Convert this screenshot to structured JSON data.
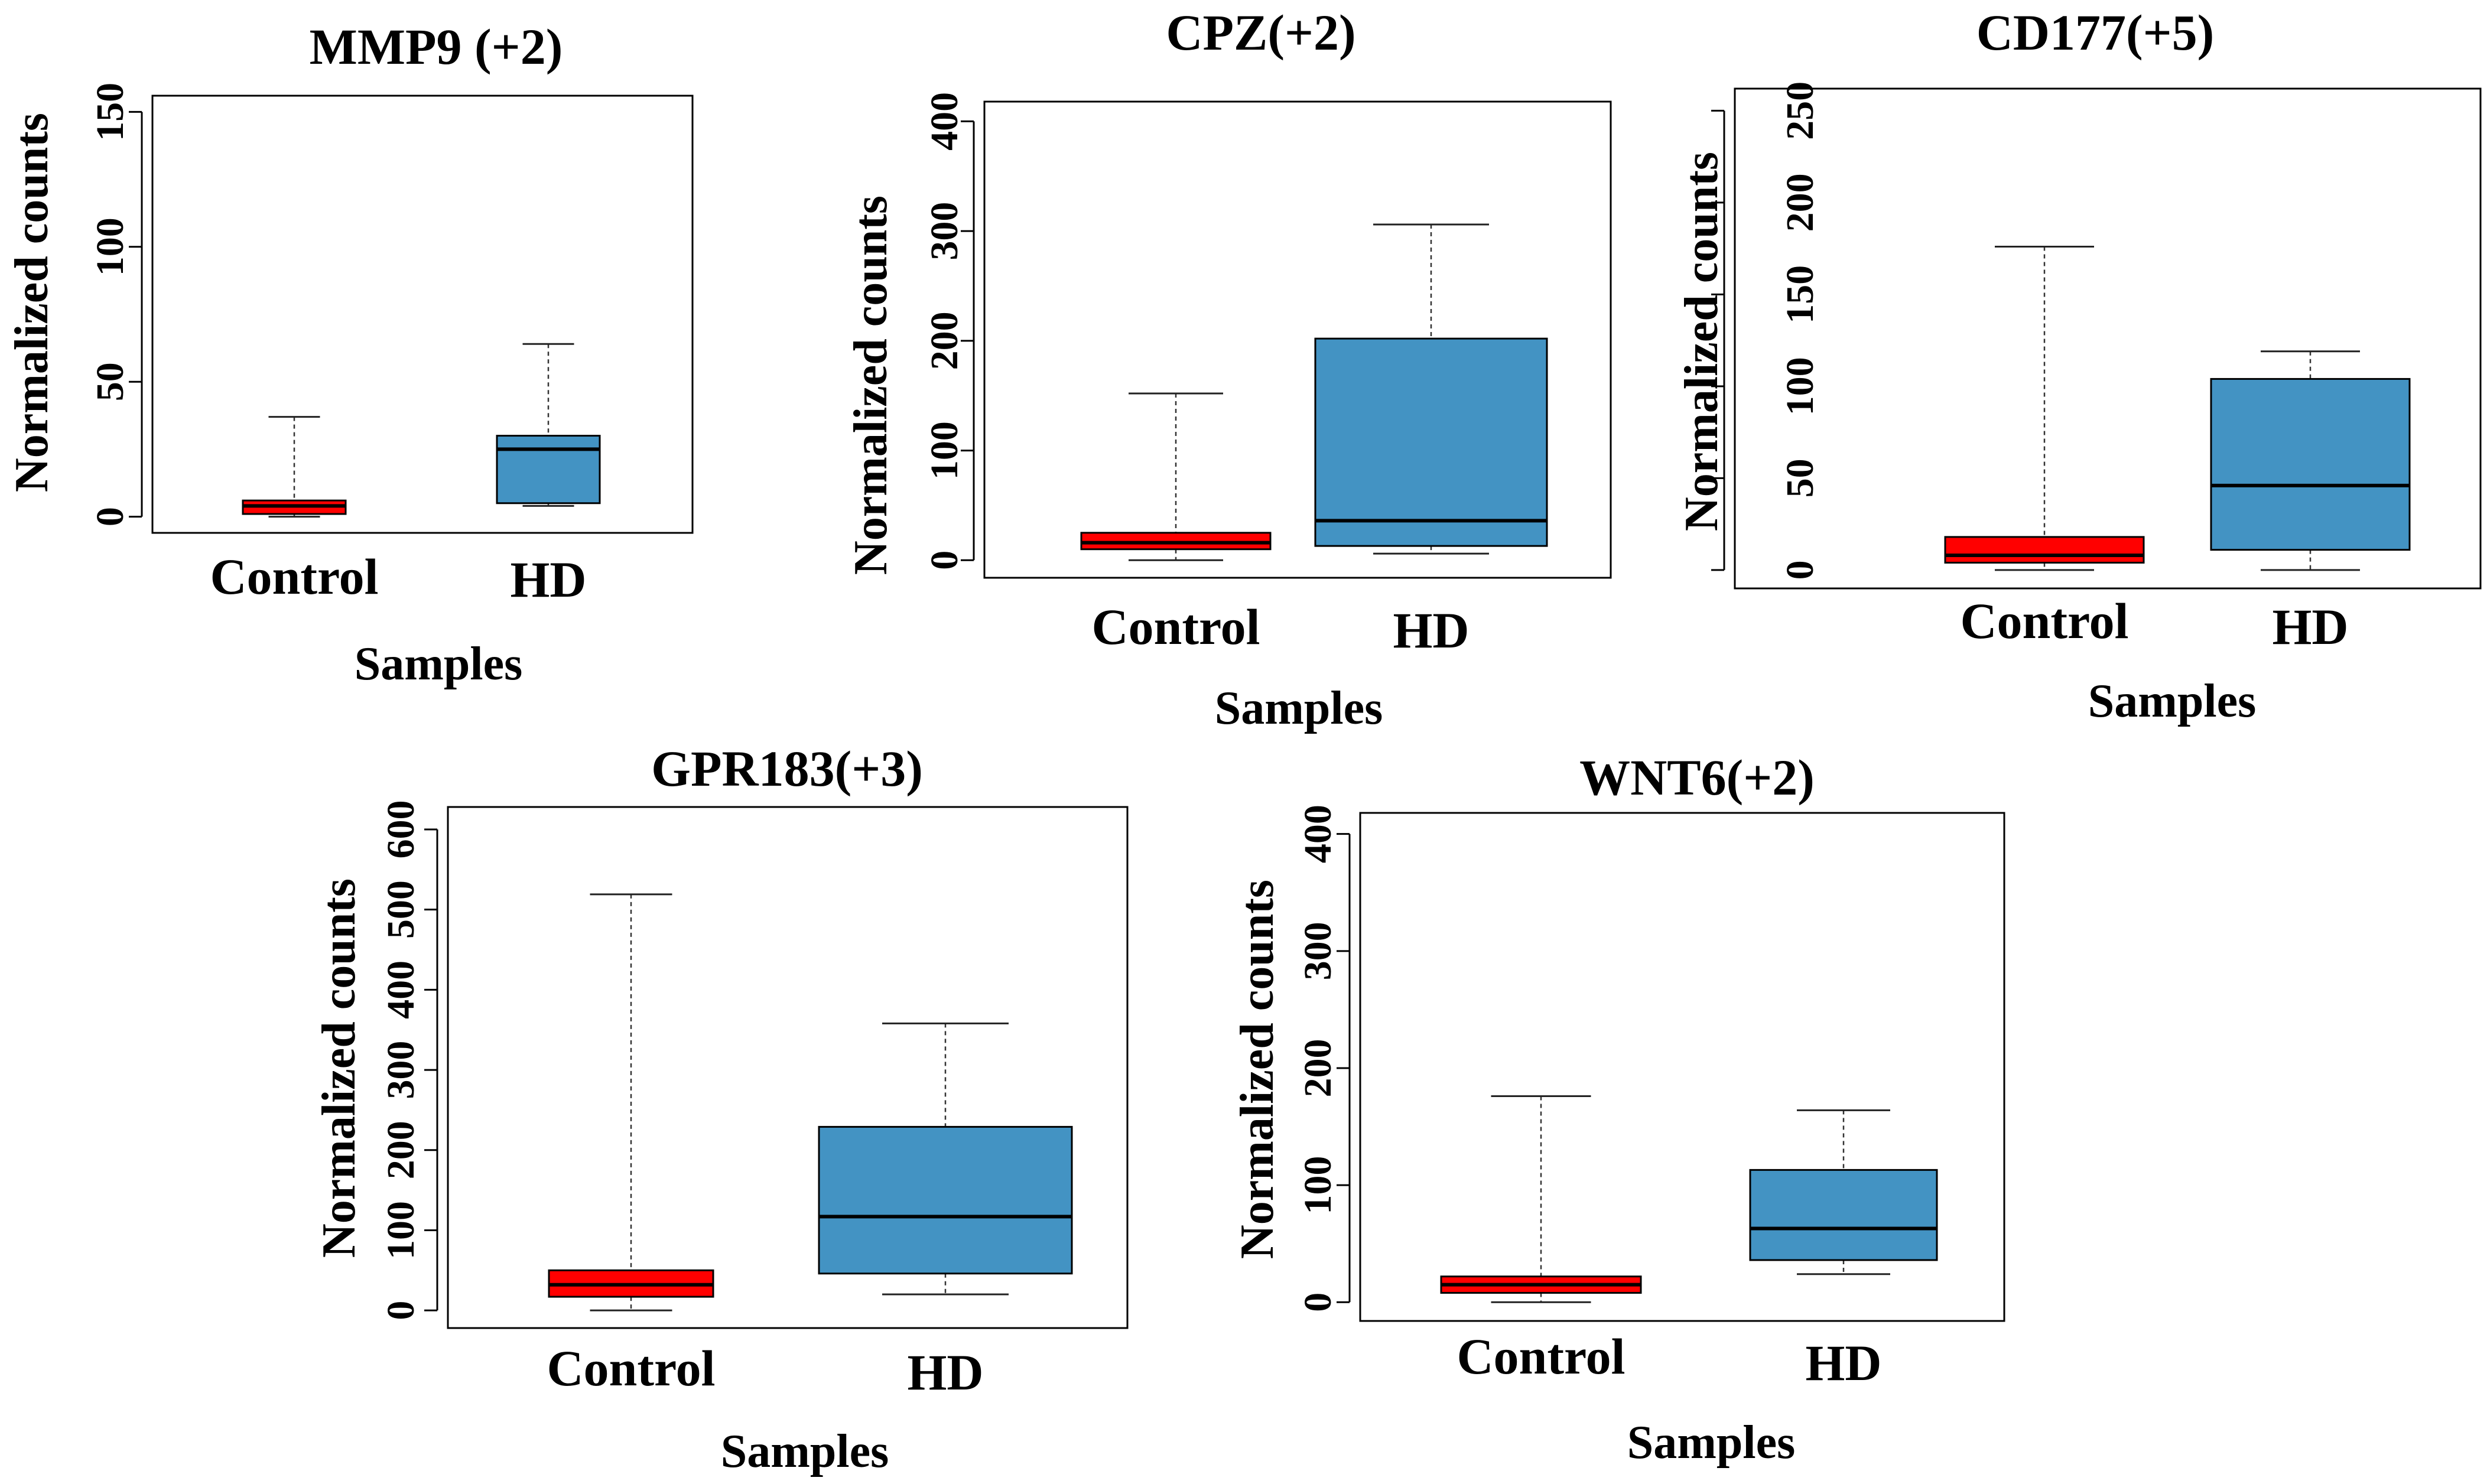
{
  "chart_data": [
    {
      "type": "boxplot",
      "title": "MMP9 (+2)",
      "xlabel": "Samples",
      "ylabel": "Normalized counts",
      "ylim": [
        -6,
        156
      ],
      "yticks": [
        0,
        50,
        100,
        150
      ],
      "categories": [
        "Control",
        "HD"
      ],
      "boxes": [
        {
          "name": "Control",
          "min": 0,
          "q1": 1,
          "median": 4,
          "q3": 6,
          "max": 37,
          "color": "#ff0000"
        },
        {
          "name": "HD",
          "min": 4,
          "q1": 5,
          "median": 25,
          "q3": 30,
          "max": 64,
          "color": "#4393c3"
        }
      ]
    },
    {
      "type": "boxplot",
      "title": "CPZ(+2)",
      "xlabel": "Samples",
      "ylabel": "Normalized counts",
      "ylim": [
        -16,
        418
      ],
      "yticks": [
        0,
        100,
        200,
        300,
        400
      ],
      "categories": [
        "Control",
        "HD"
      ],
      "boxes": [
        {
          "name": "Control",
          "min": 0,
          "q1": 10,
          "median": 16,
          "q3": 25,
          "max": 152,
          "color": "#ff0000"
        },
        {
          "name": "HD",
          "min": 6,
          "q1": 13,
          "median": 36,
          "q3": 202,
          "max": 306,
          "color": "#4393c3"
        }
      ]
    },
    {
      "type": "boxplot",
      "title": "CD177(+5)",
      "xlabel": "Samples",
      "ylabel": "Normalized counts",
      "ylim": [
        -10,
        262
      ],
      "yticks": [
        0,
        50,
        100,
        150,
        200,
        250
      ],
      "categories": [
        "Control",
        "HD"
      ],
      "boxes": [
        {
          "name": "Control",
          "min": 0,
          "q1": 4,
          "median": 8,
          "q3": 18,
          "max": 176,
          "color": "#ff0000"
        },
        {
          "name": "HD",
          "min": 0,
          "q1": 11,
          "median": 46,
          "q3": 104,
          "max": 119,
          "color": "#4393c3"
        }
      ]
    },
    {
      "type": "boxplot",
      "title": "GPR183(+3)",
      "xlabel": "Samples",
      "ylabel": "Normalized counts",
      "ylim": [
        -22,
        628
      ],
      "yticks": [
        0,
        100,
        200,
        300,
        400,
        500,
        600
      ],
      "categories": [
        "Control",
        "HD"
      ],
      "boxes": [
        {
          "name": "Control",
          "min": 0,
          "q1": 17,
          "median": 32,
          "q3": 50,
          "max": 519,
          "color": "#ff0000"
        },
        {
          "name": "HD",
          "min": 20,
          "q1": 46,
          "median": 117,
          "q3": 229,
          "max": 358,
          "color": "#4393c3"
        }
      ]
    },
    {
      "type": "boxplot",
      "title": "WNT6(+2)",
      "xlabel": "Samples",
      "ylabel": "Normalized counts",
      "ylim": [
        -16,
        418
      ],
      "yticks": [
        0,
        100,
        200,
        300,
        400
      ],
      "categories": [
        "Control",
        "HD"
      ],
      "boxes": [
        {
          "name": "Control",
          "min": 0,
          "q1": 8,
          "median": 15,
          "q3": 22,
          "max": 176,
          "color": "#ff0000"
        },
        {
          "name": "HD",
          "min": 24,
          "q1": 36,
          "median": 63,
          "q3": 113,
          "max": 164,
          "color": "#4393c3"
        }
      ]
    }
  ]
}
